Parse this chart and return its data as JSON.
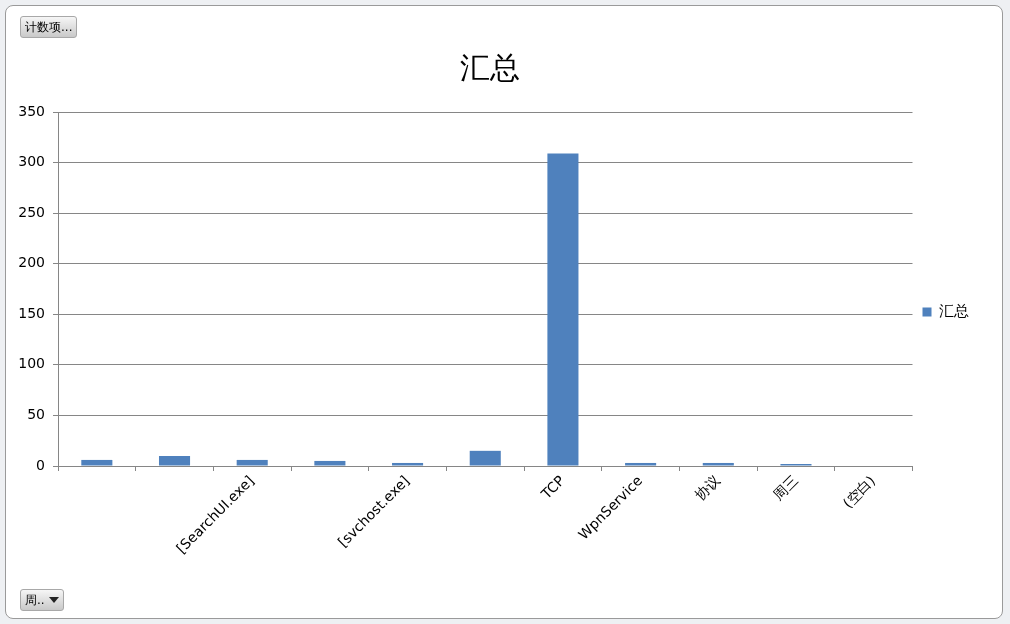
{
  "chart_data": {
    "type": "bar",
    "title": "汇总",
    "categories": [
      null,
      null,
      "[SearchUI.exe]",
      null,
      "[svchost.exe]",
      null,
      "TCP",
      "WpnService",
      "协议",
      "周三",
      "(空白)"
    ],
    "series": [
      {
        "name": "汇总",
        "color": "#4f81bd",
        "values": [
          6,
          10,
          6,
          5,
          3,
          15,
          309,
          3,
          3,
          2,
          null
        ]
      }
    ],
    "ylim": [
      0,
      350
    ],
    "yticks": [
      0,
      50,
      100,
      150,
      200,
      250,
      300,
      350
    ],
    "grid": "y",
    "legend": "right",
    "annotations": [
      "计数项...",
      "周.."
    ]
  }
}
